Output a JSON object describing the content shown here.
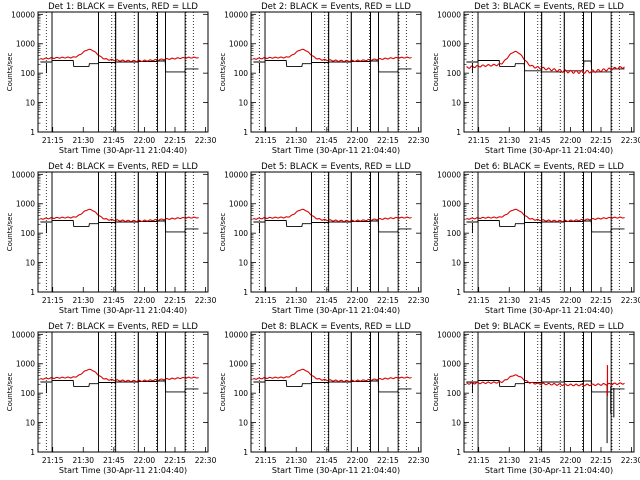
{
  "colors": {
    "events": "#000000",
    "lld": "#dd0000",
    "frame": "#000000",
    "background": "#ffffff"
  },
  "chart_data": [
    {
      "type": "line",
      "title": "Det 1: BLACK = Events, RED = LLD",
      "xlabel": "Start Time (30-Apr-11 21:04:40)",
      "ylabel": "Counts/sec",
      "yscale": "log",
      "ylim": [
        1,
        12000
      ],
      "xlim": [
        21.13,
        22.52
      ],
      "x_ticks": [
        "21:15",
        "21:30",
        "21:45",
        "22:00",
        "22:15",
        "22:30"
      ],
      "y_ticks": [
        "1",
        "10",
        "100",
        "1000",
        "10000"
      ],
      "series": [
        {
          "name": "BLACK = Events",
          "color": "#000000",
          "variant": "normal"
        },
        {
          "name": "RED = LLD",
          "color": "#dd0000",
          "variant": "normal"
        }
      ]
    },
    {
      "type": "line",
      "title": "Det 2: BLACK = Events, RED = LLD",
      "xlabel": "Start Time (30-Apr-11 21:04:40)",
      "ylabel": "Counts/sec",
      "yscale": "log",
      "ylim": [
        1,
        12000
      ],
      "xlim": [
        21.13,
        22.52
      ],
      "x_ticks": [
        "21:15",
        "21:30",
        "21:45",
        "22:00",
        "22:15",
        "22:30"
      ],
      "y_ticks": [
        "1",
        "10",
        "100",
        "1000",
        "10000"
      ],
      "series": [
        {
          "name": "BLACK = Events",
          "color": "#000000",
          "variant": "normal"
        },
        {
          "name": "RED = LLD",
          "color": "#dd0000",
          "variant": "normal"
        }
      ]
    },
    {
      "type": "line",
      "title": "Det 3: BLACK = Events, RED = LLD",
      "xlabel": "Start Time (30-Apr-11 21:04:40)",
      "ylabel": "Counts/sec",
      "yscale": "log",
      "ylim": [
        1,
        12000
      ],
      "xlim": [
        21.13,
        22.52
      ],
      "x_ticks": [
        "21:15",
        "21:30",
        "21:45",
        "22:00",
        "22:15",
        "22:30"
      ],
      "y_ticks": [
        "1",
        "10",
        "100",
        "1000",
        "10000"
      ],
      "series": [
        {
          "name": "BLACK = Events",
          "color": "#000000",
          "variant": "det3"
        },
        {
          "name": "RED = LLD",
          "color": "#dd0000",
          "variant": "det3"
        }
      ]
    },
    {
      "type": "line",
      "title": "Det 4: BLACK = Events, RED = LLD",
      "xlabel": "Start Time (30-Apr-11 21:04:40)",
      "ylabel": "Counts/sec",
      "yscale": "log",
      "ylim": [
        1,
        12000
      ],
      "xlim": [
        21.13,
        22.52
      ],
      "x_ticks": [
        "21:15",
        "21:30",
        "21:45",
        "22:00",
        "22:15",
        "22:30"
      ],
      "y_ticks": [
        "1",
        "10",
        "100",
        "1000",
        "10000"
      ],
      "series": [
        {
          "name": "BLACK = Events",
          "color": "#000000",
          "variant": "normal"
        },
        {
          "name": "RED = LLD",
          "color": "#dd0000",
          "variant": "normal"
        }
      ]
    },
    {
      "type": "line",
      "title": "Det 5: BLACK = Events, RED = LLD",
      "xlabel": "Start Time (30-Apr-11 21:04:40)",
      "ylabel": "Counts/sec",
      "yscale": "log",
      "ylim": [
        1,
        12000
      ],
      "xlim": [
        21.13,
        22.52
      ],
      "x_ticks": [
        "21:15",
        "21:30",
        "21:45",
        "22:00",
        "22:15",
        "22:30"
      ],
      "y_ticks": [
        "1",
        "10",
        "100",
        "1000",
        "10000"
      ],
      "series": [
        {
          "name": "BLACK = Events",
          "color": "#000000",
          "variant": "normal"
        },
        {
          "name": "RED = LLD",
          "color": "#dd0000",
          "variant": "normal"
        }
      ]
    },
    {
      "type": "line",
      "title": "Det 6: BLACK = Events, RED = LLD",
      "xlabel": "Start Time (30-Apr-11 21:04:40)",
      "ylabel": "Counts/sec",
      "yscale": "log",
      "ylim": [
        1,
        12000
      ],
      "xlim": [
        21.13,
        22.52
      ],
      "x_ticks": [
        "21:15",
        "21:30",
        "21:45",
        "22:00",
        "22:15",
        "22:30"
      ],
      "y_ticks": [
        "1",
        "10",
        "100",
        "1000",
        "10000"
      ],
      "series": [
        {
          "name": "BLACK = Events",
          "color": "#000000",
          "variant": "normal"
        },
        {
          "name": "RED = LLD",
          "color": "#dd0000",
          "variant": "normal"
        }
      ]
    },
    {
      "type": "line",
      "title": "Det 7: BLACK = Events, RED = LLD",
      "xlabel": "Start Time (30-Apr-11 21:04:40)",
      "ylabel": "Counts/sec",
      "yscale": "log",
      "ylim": [
        1,
        12000
      ],
      "xlim": [
        21.13,
        22.52
      ],
      "x_ticks": [
        "21:15",
        "21:30",
        "21:45",
        "22:00",
        "22:15",
        "22:30"
      ],
      "y_ticks": [
        "1",
        "10",
        "100",
        "1000",
        "10000"
      ],
      "series": [
        {
          "name": "BLACK = Events",
          "color": "#000000",
          "variant": "normal"
        },
        {
          "name": "RED = LLD",
          "color": "#dd0000",
          "variant": "normal"
        }
      ]
    },
    {
      "type": "line",
      "title": "Det 8: BLACK = Events, RED = LLD",
      "xlabel": "Start Time (30-Apr-11 21:04:40)",
      "ylabel": "Counts/sec",
      "yscale": "log",
      "ylim": [
        1,
        12000
      ],
      "xlim": [
        21.13,
        22.52
      ],
      "x_ticks": [
        "21:15",
        "21:30",
        "21:45",
        "22:00",
        "22:15",
        "22:30"
      ],
      "y_ticks": [
        "1",
        "10",
        "100",
        "1000",
        "10000"
      ],
      "series": [
        {
          "name": "BLACK = Events",
          "color": "#000000",
          "variant": "normal"
        },
        {
          "name": "RED = LLD",
          "color": "#dd0000",
          "variant": "normal"
        }
      ]
    },
    {
      "type": "line",
      "title": "Det 9: BLACK = Events, RED = LLD",
      "xlabel": "Start Time (30-Apr-11 21:04:40)",
      "ylabel": "Counts/sec",
      "yscale": "log",
      "ylim": [
        1,
        12000
      ],
      "xlim": [
        21.13,
        22.52
      ],
      "x_ticks": [
        "21:15",
        "21:30",
        "21:45",
        "22:00",
        "22:15",
        "22:30"
      ],
      "y_ticks": [
        "1",
        "10",
        "100",
        "1000",
        "10000"
      ],
      "series": [
        {
          "name": "BLACK = Events",
          "color": "#000000",
          "variant": "det9"
        },
        {
          "name": "RED = LLD",
          "color": "#dd0000",
          "variant": "det9"
        }
      ]
    }
  ]
}
